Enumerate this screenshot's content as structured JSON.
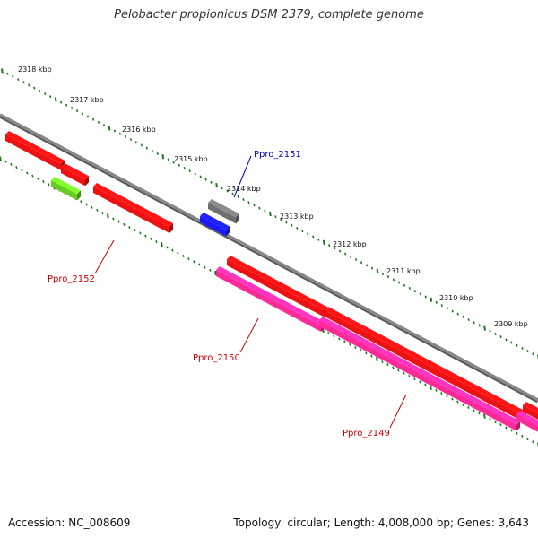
{
  "title": "Pelobacter propionicus DSM 2379, complete genome",
  "footer": {
    "accession": "Accession: NC_008609",
    "summary": "Topology: circular; Length: 4,008,000 bp; Genes: 3,643"
  },
  "colors": {
    "backbone": "#8a8a8a",
    "ruler": "#1a7a1a",
    "gene_forward": "#ee1111",
    "gene_reverse": "#ff2a9a",
    "gene_gray": "#6f6f6f",
    "gene_blue": "#1a1aff",
    "gene_green": "#66cc22",
    "label_red": "#cc0000",
    "label_blue": "#0000cc"
  },
  "ticks": [
    {
      "label": "2318 kbp"
    },
    {
      "label": "2317 kbp"
    },
    {
      "label": "2316 kbp"
    },
    {
      "label": "2315 kbp"
    },
    {
      "label": "2314 kbp"
    },
    {
      "label": "2313 kbp"
    },
    {
      "label": "2312 kbp"
    },
    {
      "label": "2311 kbp"
    },
    {
      "label": "2310 kbp"
    },
    {
      "label": "2309 kbp"
    }
  ],
  "gene_labels": [
    {
      "text": "Ppro_2151",
      "color": "label_blue"
    },
    {
      "text": "Ppro_2152",
      "color": "label_red"
    },
    {
      "text": "Ppro_2150",
      "color": "label_red"
    },
    {
      "text": "Ppro_2149",
      "color": "label_red"
    }
  ]
}
